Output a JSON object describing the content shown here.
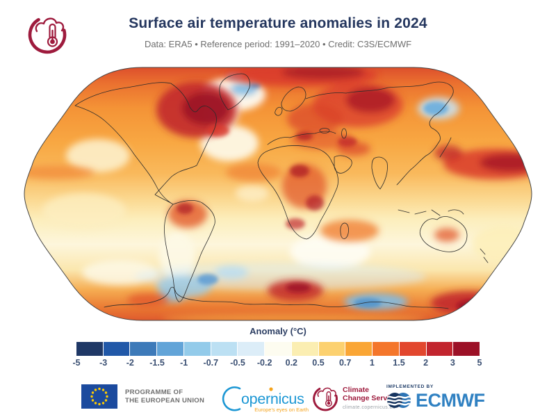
{
  "header": {
    "title": "Surface air temperature anomalies in 2024",
    "subtitle": "Data: ERA5 • Reference period: 1991–2020 • Credit: C3S/ECMWF"
  },
  "legend": {
    "title": "Anomaly (°C)",
    "boundary_labels": [
      "-5",
      "-3",
      "-2",
      "-1.5",
      "-1",
      "-0.7",
      "-0.5",
      "-0.2",
      "0.2",
      "0.5",
      "0.7",
      "1",
      "1.5",
      "2",
      "3",
      "5"
    ],
    "segment_colors": [
      "#1f3866",
      "#2158a8",
      "#3d7ab9",
      "#62a4d8",
      "#93cbea",
      "#bce0f3",
      "#dcedf8",
      "#fdfcf0",
      "#fbeeb2",
      "#fcd170",
      "#faa635",
      "#f4762b",
      "#e2472e",
      "#c2252e",
      "#9c1127"
    ]
  },
  "footer": {
    "eu_programme": {
      "line1": "PROGRAMME OF",
      "line2": "THE EUROPEAN UNION"
    },
    "copernicus": {
      "wordmark": "opernicus",
      "tagline": "Europe's eyes on Earth"
    },
    "c3s": {
      "name_line1": "Climate",
      "name_line2": "Change Service",
      "url": "climate.copernicus.eu"
    },
    "ecmwf": {
      "kicker": "IMPLEMENTED BY",
      "wordmark": "ECMWF"
    }
  },
  "colors": {
    "title_navy": "#24365e",
    "subtitle_gray": "#6e6e6e",
    "tick_navy": "#3a4f72",
    "c3s_maroon": "#9e1b3d",
    "copernicus_blue": "#1c97d4",
    "copernicus_orange": "#f5a31c",
    "ecmwf_blue": "#3081c2",
    "eu_flag_blue": "#1b4a9e",
    "eu_star_yellow": "#ffcc00"
  }
}
